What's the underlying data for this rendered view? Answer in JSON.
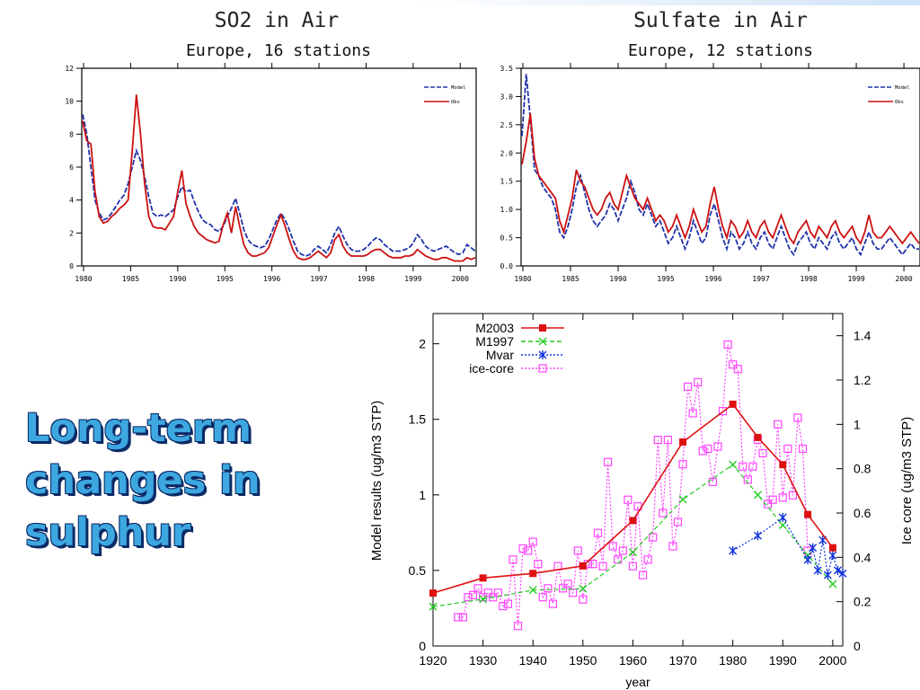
{
  "slide": {
    "title_lines": [
      "Long-term",
      "changes in",
      "sulphur"
    ]
  },
  "chart_data": [
    {
      "type": "line",
      "title": "SO2 in Air",
      "subtitle": "Europe, 16 stations",
      "xlabel": "",
      "ylabel": "",
      "ylim": [
        0,
        12
      ],
      "yticks": [
        0,
        2,
        4,
        6,
        8,
        10,
        12
      ],
      "xtick_labels": [
        "1980",
        "1985",
        "1990",
        "1995",
        "1996",
        "1997",
        "1998",
        "1999",
        "2000"
      ],
      "legend_position": "top-right",
      "grid": false,
      "series": [
        {
          "name": "Model",
          "color": "#2233aa",
          "dash": true,
          "values": [
            9.2,
            8.0,
            6.0,
            4.0,
            3.2,
            2.8,
            2.9,
            3.2,
            3.6,
            4.0,
            4.3,
            5.0,
            6.0,
            7.0,
            6.4,
            5.4,
            4.2,
            3.2,
            3.0,
            3.1,
            3.0,
            3.2,
            3.4,
            4.2,
            4.8,
            4.5,
            4.6,
            3.9,
            3.3,
            2.8,
            2.6,
            2.5,
            2.2,
            2.1,
            2.4,
            3.0,
            3.5,
            4.1,
            3.2,
            2.2,
            1.6,
            1.3,
            1.2,
            1.1,
            1.2,
            1.6,
            2.2,
            2.8,
            3.2,
            2.8,
            2.2,
            1.5,
            0.9,
            0.7,
            0.6,
            0.7,
            1.0,
            1.2,
            1.0,
            0.8,
            1.3,
            2.0,
            2.4,
            1.8,
            1.3,
            1.0,
            0.9,
            0.9,
            1.0,
            1.2,
            1.5,
            1.7,
            1.6,
            1.3,
            1.1,
            0.9,
            0.9,
            0.9,
            1.0,
            1.1,
            1.4,
            1.9,
            1.6,
            1.2,
            1.0,
            0.9,
            1.0,
            1.1,
            1.2,
            1.0,
            0.8,
            0.7,
            0.8,
            1.3,
            1.1,
            0.9
          ]
        },
        {
          "name": "Obs",
          "color": "#cc1111",
          "dash": false,
          "values": [
            8.8,
            7.6,
            7.4,
            4.5,
            3.0,
            2.6,
            2.7,
            3.0,
            3.2,
            3.5,
            3.7,
            4.0,
            7.0,
            10.4,
            8.0,
            5.0,
            3.0,
            2.4,
            2.3,
            2.3,
            2.2,
            2.6,
            3.0,
            4.5,
            5.8,
            3.8,
            3.0,
            2.4,
            2.0,
            1.8,
            1.6,
            1.5,
            1.4,
            1.5,
            2.5,
            3.2,
            2.0,
            3.6,
            2.4,
            1.3,
            0.8,
            0.6,
            0.6,
            0.7,
            0.8,
            1.1,
            1.8,
            2.5,
            3.1,
            2.4,
            1.6,
            0.9,
            0.5,
            0.4,
            0.4,
            0.5,
            0.7,
            0.9,
            0.7,
            0.5,
            0.8,
            1.6,
            1.9,
            1.2,
            0.8,
            0.6,
            0.6,
            0.6,
            0.6,
            0.7,
            0.9,
            1.0,
            1.0,
            0.8,
            0.6,
            0.5,
            0.5,
            0.5,
            0.6,
            0.6,
            0.7,
            1.0,
            0.8,
            0.6,
            0.5,
            0.4,
            0.4,
            0.5,
            0.5,
            0.4,
            0.3,
            0.3,
            0.3,
            0.5,
            0.4,
            0.5
          ]
        }
      ]
    },
    {
      "type": "line",
      "title": "Sulfate in Air",
      "subtitle": "Europe, 12 stations",
      "xlabel": "",
      "ylabel": "",
      "ylim": [
        0,
        3.5
      ],
      "yticks": [
        0,
        0.5,
        1.0,
        1.5,
        2.0,
        2.5,
        3.0,
        3.5
      ],
      "ytick_labels": [
        "0.0",
        "0.5",
        "1.0",
        "1.5",
        "2.0",
        "2.5",
        "3.0",
        "3.5"
      ],
      "xtick_labels": [
        "1980",
        "1985",
        "1990",
        "1995",
        "1996",
        "1997",
        "1998",
        "1999",
        "2000"
      ],
      "legend_position": "top-right",
      "grid": false,
      "series": [
        {
          "name": "Model",
          "color": "#2233aa",
          "dash": true,
          "values": [
            2.3,
            3.4,
            2.6,
            1.7,
            1.6,
            1.4,
            1.3,
            1.2,
            1.0,
            0.6,
            0.5,
            0.7,
            1.0,
            1.4,
            1.6,
            1.3,
            1.0,
            0.8,
            0.7,
            0.8,
            0.9,
            1.1,
            1.0,
            0.8,
            1.0,
            1.2,
            1.5,
            1.3,
            1.0,
            0.9,
            1.1,
            0.9,
            0.7,
            0.8,
            0.6,
            0.4,
            0.5,
            0.7,
            0.5,
            0.3,
            0.5,
            0.8,
            0.6,
            0.4,
            0.5,
            0.9,
            1.1,
            0.8,
            0.5,
            0.3,
            0.6,
            0.5,
            0.3,
            0.4,
            0.6,
            0.4,
            0.3,
            0.5,
            0.6,
            0.4,
            0.3,
            0.5,
            0.7,
            0.5,
            0.3,
            0.2,
            0.4,
            0.5,
            0.6,
            0.4,
            0.3,
            0.5,
            0.4,
            0.3,
            0.5,
            0.6,
            0.4,
            0.3,
            0.4,
            0.5,
            0.3,
            0.2,
            0.4,
            0.6,
            0.4,
            0.3,
            0.3,
            0.4,
            0.5,
            0.4,
            0.3,
            0.2,
            0.3,
            0.4,
            0.3,
            0.3
          ]
        },
        {
          "name": "Obs",
          "color": "#cc1111",
          "dash": false,
          "values": [
            1.8,
            2.2,
            2.7,
            1.9,
            1.6,
            1.5,
            1.4,
            1.3,
            1.2,
            0.8,
            0.6,
            0.9,
            1.2,
            1.7,
            1.5,
            1.4,
            1.2,
            1.0,
            0.9,
            1.0,
            1.2,
            1.3,
            1.1,
            1.0,
            1.3,
            1.6,
            1.4,
            1.2,
            1.1,
            1.0,
            1.2,
            1.0,
            0.8,
            0.9,
            0.8,
            0.6,
            0.7,
            0.9,
            0.7,
            0.5,
            0.7,
            1.0,
            0.8,
            0.6,
            0.7,
            1.1,
            1.4,
            1.0,
            0.7,
            0.5,
            0.8,
            0.7,
            0.5,
            0.6,
            0.8,
            0.6,
            0.5,
            0.7,
            0.8,
            0.6,
            0.5,
            0.7,
            0.9,
            0.7,
            0.5,
            0.4,
            0.6,
            0.7,
            0.8,
            0.6,
            0.5,
            0.7,
            0.6,
            0.5,
            0.7,
            0.8,
            0.6,
            0.5,
            0.6,
            0.7,
            0.5,
            0.4,
            0.6,
            0.9,
            0.6,
            0.5,
            0.5,
            0.6,
            0.7,
            0.6,
            0.5,
            0.4,
            0.5,
            0.6,
            0.5,
            0.4
          ]
        }
      ]
    },
    {
      "type": "line",
      "title": "",
      "xlabel": "year",
      "ylabel": "Model results (ug/m3 STP)",
      "y2label": "Ice core (ug/m3 STP)",
      "xlim": [
        1920,
        2002
      ],
      "xticks": [
        1920,
        1930,
        1940,
        1950,
        1960,
        1970,
        1980,
        1990,
        2000
      ],
      "ylim": [
        0,
        2.2
      ],
      "yticks": [
        0,
        0.5,
        1,
        1.5,
        2
      ],
      "ytick_labels": [
        "0",
        "0.5",
        "1",
        "1.5",
        "2"
      ],
      "y2lim": [
        0,
        1.5
      ],
      "y2ticks": [
        0,
        0.2,
        0.4,
        0.6,
        0.8,
        1,
        1.2,
        1.4
      ],
      "y2tick_labels": [
        "0",
        "0.2",
        "0.4",
        "0.6",
        "0.8",
        "1",
        "1.2",
        "1.4"
      ],
      "legend_position": "top-left",
      "grid": false,
      "series": [
        {
          "name": "M2003",
          "color": "#dd1111",
          "marker": "filled-square",
          "dash": "solid",
          "axis": "left",
          "x": [
            1920,
            1930,
            1940,
            1950,
            1960,
            1970,
            1980,
            1985,
            1990,
            1995,
            2000
          ],
          "y": [
            0.35,
            0.45,
            0.48,
            0.53,
            0.83,
            1.35,
            1.6,
            1.38,
            1.2,
            0.87,
            0.65
          ]
        },
        {
          "name": "M1997",
          "color": "#22cc22",
          "marker": "x",
          "dash": "dashed",
          "axis": "left",
          "x": [
            1920,
            1930,
            1940,
            1950,
            1960,
            1970,
            1980,
            1985,
            1990,
            1995,
            2000
          ],
          "y": [
            0.26,
            0.31,
            0.37,
            0.38,
            0.62,
            0.97,
            1.2,
            1.0,
            0.8,
            0.6,
            0.41
          ]
        },
        {
          "name": "Mvar",
          "color": "#1133dd",
          "marker": "asterisk",
          "dash": "dotted",
          "axis": "left",
          "x": [
            1980,
            1985,
            1990,
            1995,
            1996,
            1997,
            1998,
            1999,
            2000,
            2001,
            2002
          ],
          "y": [
            0.63,
            0.73,
            0.85,
            0.57,
            0.65,
            0.5,
            0.7,
            0.47,
            0.6,
            0.5,
            0.48
          ]
        },
        {
          "name": "ice-core",
          "color": "#ff44ff",
          "marker": "open-square",
          "dash": "dotted",
          "axis": "right",
          "x": [
            1925,
            1926,
            1927,
            1928,
            1929,
            1930,
            1931,
            1932,
            1933,
            1934,
            1935,
            1936,
            1937,
            1938,
            1939,
            1940,
            1941,
            1942,
            1943,
            1944,
            1945,
            1946,
            1947,
            1948,
            1949,
            1950,
            1951,
            1952,
            1953,
            1954,
            1955,
            1956,
            1957,
            1958,
            1959,
            1960,
            1961,
            1962,
            1963,
            1964,
            1965,
            1966,
            1967,
            1968,
            1969,
            1970,
            1971,
            1972,
            1973,
            1974,
            1975,
            1976,
            1977,
            1978,
            1979,
            1980,
            1981,
            1982,
            1983,
            1984,
            1985,
            1986,
            1987,
            1988,
            1989,
            1990,
            1991,
            1992,
            1993,
            1994,
            1995
          ],
          "y": [
            0.13,
            0.13,
            0.22,
            0.23,
            0.26,
            0.22,
            0.24,
            0.22,
            0.24,
            0.18,
            0.19,
            0.39,
            0.09,
            0.44,
            0.43,
            0.47,
            0.37,
            0.22,
            0.26,
            0.19,
            0.36,
            0.26,
            0.28,
            0.24,
            0.43,
            0.21,
            0.37,
            0.37,
            0.51,
            0.36,
            0.83,
            0.45,
            0.39,
            0.43,
            0.66,
            0.36,
            0.63,
            0.32,
            0.39,
            0.49,
            0.93,
            0.6,
            0.93,
            0.45,
            0.56,
            0.82,
            1.17,
            1.05,
            1.19,
            0.88,
            0.89,
            0.74,
            0.9,
            1.06,
            1.36,
            1.27,
            1.25,
            0.81,
            0.75,
            0.81,
            0.93,
            0.87,
            0.64,
            0.66,
            1.0,
            0.67,
            0.89,
            0.68,
            1.03,
            0.89,
            0.43
          ]
        }
      ]
    }
  ]
}
